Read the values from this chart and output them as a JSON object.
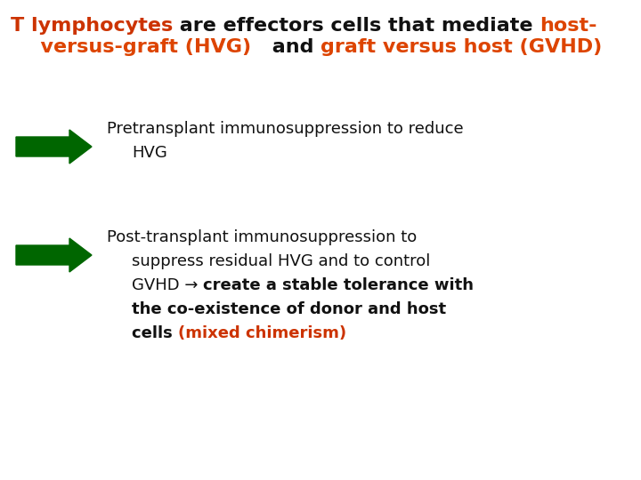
{
  "bg_color": "#ffffff",
  "arrow_color": "#006600",
  "title_orange": "#cc3300",
  "title_bright_orange": "#dd4400",
  "text_dark": "#111111",
  "text_orange": "#cc3300",
  "title_fontsize": 16,
  "body_fontsize": 13,
  "line1_parts": [
    [
      "T lymphocytes",
      "#cc3300"
    ],
    [
      " are effectors cells that mediate ",
      "#111111"
    ],
    [
      "host-",
      "#dd4400"
    ]
  ],
  "line2_parts": [
    [
      "  versus-graft (HVG)  ",
      "#dd4400"
    ],
    [
      " and ",
      "#111111"
    ],
    [
      "graft versus host (GVHD)",
      "#dd4400"
    ]
  ],
  "bullet1_lines": [
    "Pretransplant immunosuppression to reduce",
    "HVG"
  ],
  "bullet2_line1": "Post-transplant immunosuppression to",
  "bullet2_line2": "suppress residual HVG and to control",
  "bullet2_line3_normal": "GVHD → ",
  "bullet2_line3_bold": "create a stable tolerance with",
  "bullet2_line4": "the co-existence of donor and host",
  "bullet2_line5_black": "cells ",
  "bullet2_line5_orange": "(mixed chimerism)"
}
